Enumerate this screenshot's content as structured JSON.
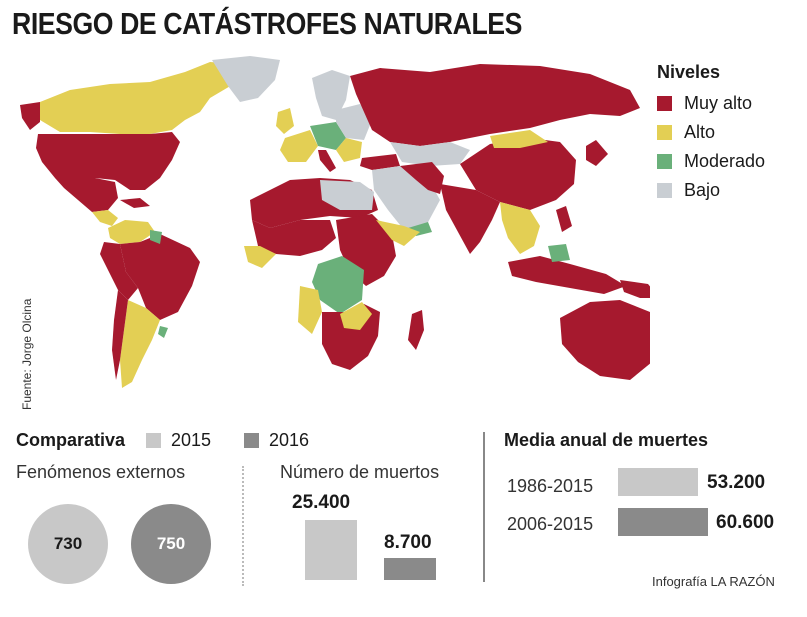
{
  "title": "RIESGO DE CATÁSTROFES NATURALES",
  "colors": {
    "muy_alto": "#a6192e",
    "alto": "#e3cf54",
    "moderado": "#6ab07a",
    "bajo": "#c9ced3",
    "y2015": "#c8c8c8",
    "y2016": "#8a8a8a",
    "ocean": "#ffffff"
  },
  "legend": {
    "title": "Niveles",
    "items": [
      {
        "label": "Muy alto"
      },
      {
        "label": "Alto"
      },
      {
        "label": "Moderado"
      },
      {
        "label": "Bajo"
      }
    ]
  },
  "source": "Fuente: Jorge Olcina",
  "comparativa": {
    "title": "Comparativa",
    "year_a": "2015",
    "year_b": "2016",
    "fenomenos_label": "Fenómenos externos",
    "fenomenos_2015": "730",
    "fenomenos_2016": "750",
    "muertos_label": "Número de muertos",
    "muertos_2015": "25.400",
    "muertos_2016": "8.700"
  },
  "media": {
    "title": "Media anual de muertes",
    "rows": [
      {
        "period": "1986-2015",
        "value": "53.200"
      },
      {
        "period": "2006-2015",
        "value": "60.600"
      }
    ]
  },
  "credit": "Infografía LA RAZÓN"
}
